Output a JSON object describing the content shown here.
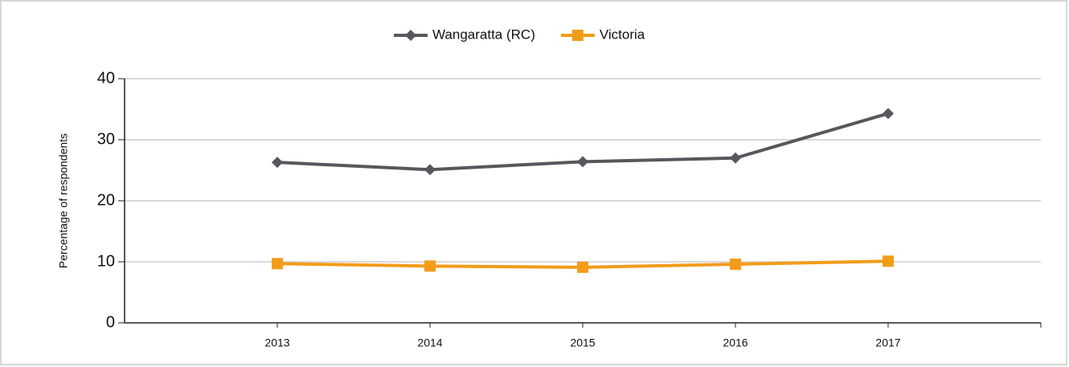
{
  "chart_data": {
    "type": "line",
    "categories": [
      "2013",
      "2014",
      "2015",
      "2016",
      "2017"
    ],
    "series": [
      {
        "name": "Wangaratta (RC)",
        "color": "#55585c",
        "marker": "diamond",
        "values": [
          26.3,
          25.1,
          26.4,
          27.0,
          34.3
        ]
      },
      {
        "name": "Victoria",
        "color": "#f29c1a",
        "marker": "square",
        "values": [
          9.7,
          9.3,
          9.1,
          9.6,
          10.1
        ]
      }
    ],
    "ylabel": "Percentage of respondents",
    "ylim": [
      0,
      40
    ],
    "yticks": [
      0,
      10,
      20,
      30,
      40
    ],
    "grid": true,
    "legend": "top"
  }
}
